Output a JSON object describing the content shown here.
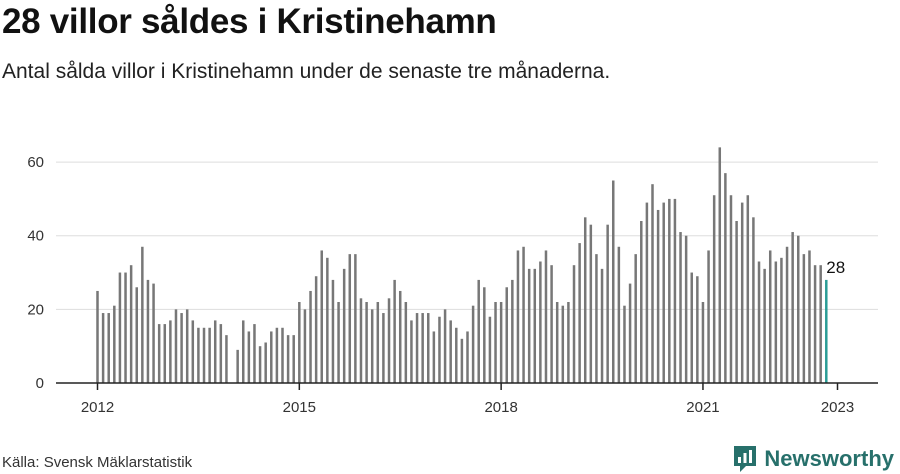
{
  "header": {
    "title": "28 villor såldes i Kristinehamn",
    "subtitle": "Antal sålda villor i Kristinehamn under de senaste tre månaderna."
  },
  "footer": {
    "source": "Källa: Svensk Mäklarstatistik",
    "brand": "Newsworthy"
  },
  "colors": {
    "bar": "#777777",
    "highlight": "#2a9d96",
    "grid": "#dddddd",
    "axis": "#222222",
    "brand": "#27706b"
  },
  "chart_data": {
    "type": "bar",
    "title": "",
    "xlabel": "",
    "ylabel": "",
    "ylim": [
      0,
      66
    ],
    "yticks": [
      0,
      20,
      40,
      60
    ],
    "xticks": [
      {
        "label": "2012",
        "index": 0
      },
      {
        "label": "2015",
        "index": 36
      },
      {
        "label": "2018",
        "index": 72
      },
      {
        "label": "2021",
        "index": 108
      },
      {
        "label": "2023",
        "index": 132
      }
    ],
    "grid": true,
    "highlight_last": true,
    "last_label": "28",
    "categories_start": "2012-01",
    "categories_frequency": "monthly",
    "values": [
      25,
      19,
      19,
      21,
      30,
      30,
      32,
      26,
      37,
      28,
      27,
      16,
      16,
      17,
      20,
      19,
      20,
      17,
      15,
      15,
      15,
      17,
      16,
      13,
      null,
      9,
      17,
      14,
      16,
      10,
      11,
      14,
      15,
      15,
      13,
      13,
      22,
      20,
      25,
      29,
      36,
      34,
      28,
      22,
      31,
      35,
      35,
      23,
      22,
      20,
      22,
      19,
      23,
      28,
      25,
      22,
      17,
      19,
      19,
      19,
      14,
      18,
      20,
      17,
      15,
      12,
      14,
      21,
      28,
      26,
      18,
      22,
      22,
      26,
      28,
      36,
      37,
      31,
      31,
      33,
      36,
      32,
      22,
      21,
      22,
      32,
      38,
      45,
      43,
      35,
      31,
      43,
      55,
      37,
      21,
      27,
      35,
      44,
      49,
      54,
      47,
      49,
      50,
      50,
      41,
      40,
      30,
      29,
      22,
      36,
      51,
      64,
      57,
      51,
      44,
      49,
      51,
      45,
      33,
      31,
      36,
      33,
      34,
      37,
      41,
      40,
      35,
      36,
      32,
      32,
      28
    ]
  }
}
